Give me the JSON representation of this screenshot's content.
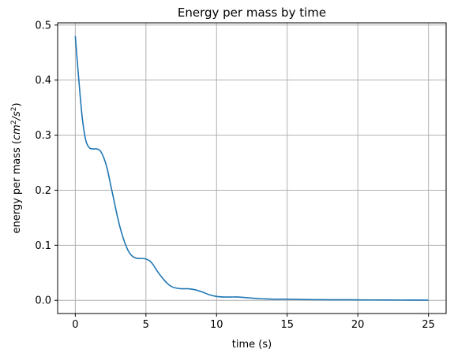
{
  "chart_data": {
    "type": "line",
    "title": "Energy per mass by time",
    "xlabel": "time (s)",
    "ylabel_text": "energy per mass (",
    "ylabel_unit_base": "cm",
    "ylabel_unit_exp1": "2",
    "ylabel_unit_mid": "/s",
    "ylabel_unit_exp2": "2",
    "ylabel_close": ")",
    "xlim": [
      -1.25,
      26.25
    ],
    "ylim": [
      -0.024,
      0.504
    ],
    "xticks": [
      0,
      5,
      10,
      15,
      20,
      25
    ],
    "xtick_labels": [
      "0",
      "5",
      "10",
      "15",
      "20",
      "25"
    ],
    "yticks": [
      0.0,
      0.1,
      0.2,
      0.3,
      0.4,
      0.5
    ],
    "ytick_labels": [
      "0.0",
      "0.1",
      "0.2",
      "0.3",
      "0.4",
      "0.5"
    ],
    "grid": true,
    "line_color": "#1f77b4",
    "series": [
      {
        "x": [
          0,
          0.25,
          0.5,
          0.75,
          1.0,
          1.25,
          1.5,
          1.75,
          2.0,
          2.25,
          2.5,
          2.75,
          3.0,
          3.25,
          3.5,
          3.75,
          4.0,
          4.25,
          4.5,
          4.75,
          5.0,
          5.25,
          5.5,
          5.75,
          6.0,
          6.25,
          6.5,
          6.75,
          7.0,
          7.5,
          8.0,
          8.5,
          9.0,
          9.5,
          10.0,
          10.5,
          11.0,
          11.5,
          12.0,
          12.5,
          13.0,
          13.5,
          14.0,
          15.0,
          16.0,
          17.0,
          18.0,
          19.0,
          20.0,
          21.0,
          22.0,
          23.0,
          24.0,
          25.0
        ],
        "y": [
          0.48,
          0.4,
          0.33,
          0.29,
          0.277,
          0.275,
          0.275,
          0.272,
          0.26,
          0.24,
          0.21,
          0.18,
          0.15,
          0.125,
          0.105,
          0.09,
          0.081,
          0.077,
          0.076,
          0.076,
          0.075,
          0.072,
          0.065,
          0.055,
          0.046,
          0.038,
          0.031,
          0.026,
          0.023,
          0.021,
          0.021,
          0.019,
          0.015,
          0.01,
          0.007,
          0.006,
          0.006,
          0.006,
          0.005,
          0.004,
          0.003,
          0.0025,
          0.002,
          0.002,
          0.0015,
          0.0012,
          0.001,
          0.001,
          0.0008,
          0.0007,
          0.0006,
          0.0005,
          0.0004,
          0.0003
        ]
      }
    ]
  }
}
